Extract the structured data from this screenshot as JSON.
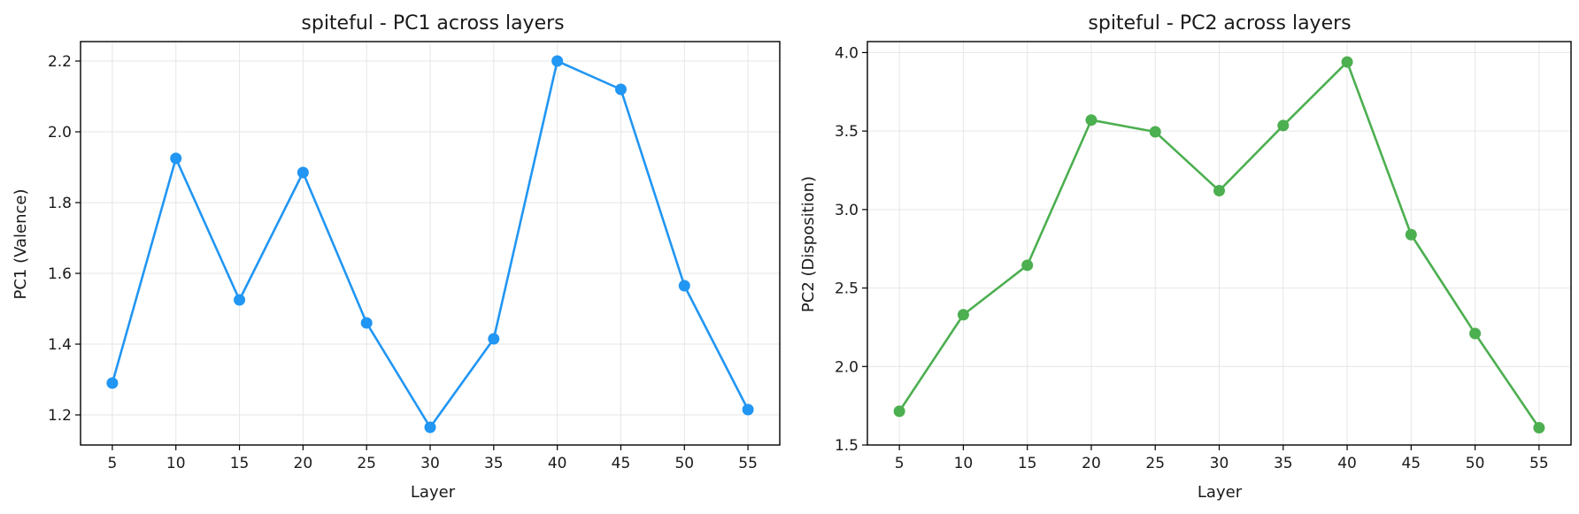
{
  "chart_data": [
    {
      "type": "line",
      "title": "spiteful - PC1 across layers",
      "xlabel": "Layer",
      "ylabel": "PC1 (Valence)",
      "x": [
        5,
        10,
        15,
        20,
        25,
        30,
        35,
        40,
        45,
        50,
        55
      ],
      "xticks": [
        5,
        10,
        15,
        20,
        25,
        30,
        35,
        40,
        45,
        50,
        55
      ],
      "yticks": [
        1.2,
        1.4,
        1.6,
        1.8,
        2.0,
        2.2
      ],
      "ytick_labels": [
        "1.2",
        "1.4",
        "1.6",
        "1.8",
        "2.0",
        "2.2"
      ],
      "xlim": [
        2.5,
        57.5
      ],
      "ylim": [
        1.115,
        2.255
      ],
      "grid": true,
      "series": [
        {
          "values": [
            1.29,
            1.925,
            1.525,
            1.885,
            1.46,
            1.165,
            1.415,
            2.2,
            2.12,
            1.565,
            1.215
          ],
          "color": "#2196f3"
        }
      ]
    },
    {
      "type": "line",
      "title": "spiteful - PC2 across layers",
      "xlabel": "Layer",
      "ylabel": "PC2 (Disposition)",
      "x": [
        5,
        10,
        15,
        20,
        25,
        30,
        35,
        40,
        45,
        50,
        55
      ],
      "xticks": [
        5,
        10,
        15,
        20,
        25,
        30,
        35,
        40,
        45,
        50,
        55
      ],
      "yticks": [
        1.5,
        2.0,
        2.5,
        3.0,
        3.5,
        4.0
      ],
      "ytick_labels": [
        "1.5",
        "2.0",
        "2.5",
        "3.0",
        "3.5",
        "4.0"
      ],
      "xlim": [
        2.5,
        57.5
      ],
      "ylim": [
        1.5,
        4.07
      ],
      "grid": true,
      "series": [
        {
          "values": [
            1.715,
            2.33,
            2.645,
            3.57,
            3.495,
            3.12,
            3.535,
            3.94,
            2.84,
            2.21,
            1.61
          ],
          "color": "#4caf50"
        }
      ]
    }
  ]
}
